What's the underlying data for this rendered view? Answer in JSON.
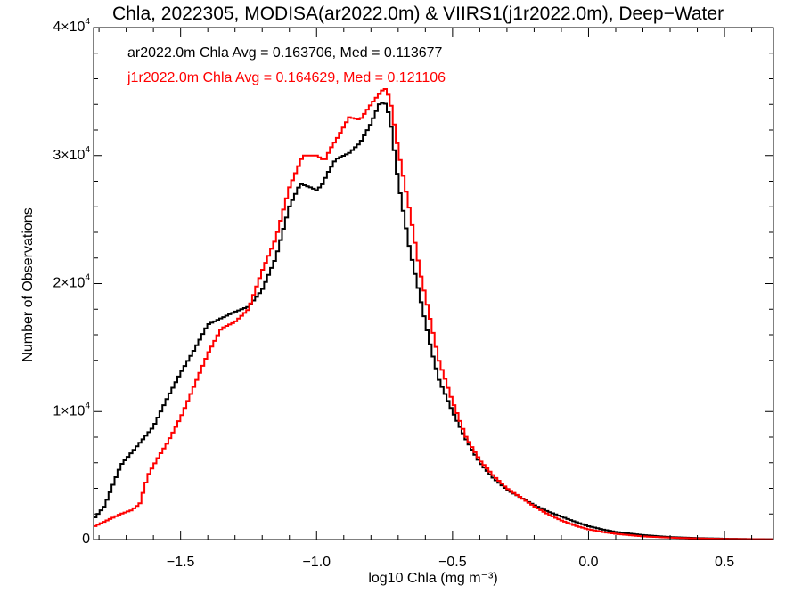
{
  "colors": {
    "series_black": "#000000",
    "series_red": "#ff0000",
    "background": "#ffffff"
  },
  "chart_data": {
    "type": "line",
    "step": true,
    "title": "Chla, 2022305, MODISA(ar2022.0m) & VIIRS1(j1r2022.0m), Deep−Water",
    "xlabel": "log10 Chla (mg m⁻³)",
    "ylabel": "Number of Observations",
    "xlim": [
      -1.82,
      0.68
    ],
    "ylim": [
      0,
      40000
    ],
    "xticks": [
      -1.5,
      -1.0,
      -0.5,
      0.0,
      0.5
    ],
    "xtick_labels": [
      "−1.5",
      "−1.0",
      "−0.5",
      "0.0",
      "0.5"
    ],
    "yticks": [
      0,
      10000,
      20000,
      30000,
      40000
    ],
    "ytick_labels": [
      {
        "base": "0",
        "exp": ""
      },
      {
        "base": "1×10",
        "exp": "4"
      },
      {
        "base": "2×10",
        "exp": "4"
      },
      {
        "base": "3×10",
        "exp": "4"
      },
      {
        "base": "4×10",
        "exp": "4"
      }
    ],
    "grid": false,
    "annotations": [
      {
        "text": "ar2022.0m Chla Avg = 0.163706, Med = 0.113677",
        "color": "#000000"
      },
      {
        "text": "j1r2022.0m Chla Avg = 0.164629, Med = 0.121106",
        "color": "#ff0000"
      }
    ],
    "series": [
      {
        "color": "#000000",
        "x": [
          -1.82,
          -1.78,
          -1.72,
          -1.66,
          -1.6,
          -1.55,
          -1.5,
          -1.45,
          -1.4,
          -1.37,
          -1.3,
          -1.25,
          -1.2,
          -1.15,
          -1.1,
          -1.06,
          -1.02,
          -1.0,
          -0.98,
          -0.96,
          -0.93,
          -0.88,
          -0.84,
          -0.8,
          -0.77,
          -0.75,
          -0.73,
          -0.7,
          -0.66,
          -0.62,
          -0.58,
          -0.55,
          -0.5,
          -0.45,
          -0.4,
          -0.35,
          -0.3,
          -0.25,
          -0.2,
          -0.15,
          -0.1,
          -0.05,
          0.0,
          0.05,
          0.1,
          0.2,
          0.3,
          0.4,
          0.5,
          0.6,
          0.68
        ],
        "y": [
          1600,
          2600,
          5800,
          7300,
          8800,
          11000,
          13000,
          14800,
          16800,
          17100,
          17800,
          18200,
          19500,
          22000,
          26000,
          27800,
          27500,
          27300,
          27700,
          28600,
          29700,
          30200,
          31000,
          32500,
          34000,
          34200,
          33000,
          28000,
          23000,
          19000,
          15000,
          12500,
          10000,
          7800,
          6000,
          4800,
          3900,
          3300,
          2700,
          2200,
          1800,
          1400,
          1050,
          800,
          600,
          350,
          200,
          120,
          70,
          40,
          20
        ]
      },
      {
        "color": "#ff0000",
        "x": [
          -1.82,
          -1.78,
          -1.72,
          -1.68,
          -1.65,
          -1.62,
          -1.58,
          -1.55,
          -1.5,
          -1.45,
          -1.4,
          -1.35,
          -1.3,
          -1.25,
          -1.2,
          -1.15,
          -1.1,
          -1.05,
          -1.0,
          -0.97,
          -0.95,
          -0.92,
          -0.88,
          -0.84,
          -0.8,
          -0.77,
          -0.75,
          -0.73,
          -0.7,
          -0.66,
          -0.62,
          -0.58,
          -0.55,
          -0.5,
          -0.45,
          -0.4,
          -0.35,
          -0.3,
          -0.25,
          -0.2,
          -0.15,
          -0.1,
          -0.05,
          0.0,
          0.05,
          0.1,
          0.2,
          0.3,
          0.4,
          0.5,
          0.6,
          0.68
        ],
        "y": [
          1000,
          1400,
          2000,
          2300,
          2800,
          5000,
          6500,
          7500,
          9500,
          12000,
          14500,
          16500,
          17000,
          18000,
          21000,
          23500,
          27500,
          30000,
          30000,
          29600,
          30500,
          31500,
          33000,
          32800,
          34000,
          34800,
          35300,
          34500,
          30500,
          26000,
          21000,
          17000,
          14000,
          10800,
          8000,
          6200,
          5000,
          4000,
          3300,
          2600,
          2000,
          1500,
          1100,
          800,
          600,
          450,
          250,
          150,
          90,
          50,
          30,
          15
        ]
      }
    ]
  }
}
